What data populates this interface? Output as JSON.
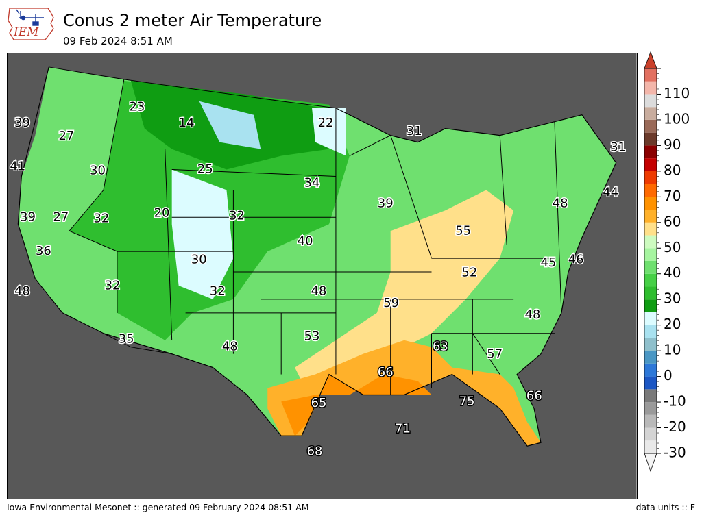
{
  "header": {
    "title": "Conus 2 meter Air Temperature",
    "subtitle": "09 Feb 2024 8:51 AM",
    "logo_text": "IEM"
  },
  "footer": {
    "left": "Iowa Environmental Mesonet :: generated 09 February 2024 08:51 AM",
    "right": "data units :: F"
  },
  "colorbar": {
    "min": -30,
    "max": 120,
    "tick_labels": [
      "110",
      "100",
      "90",
      "80",
      "70",
      "60",
      "50",
      "40",
      "30",
      "20",
      "10",
      "0",
      "-10",
      "-20",
      "-30"
    ],
    "tick_values": [
      110,
      100,
      90,
      80,
      70,
      60,
      50,
      40,
      30,
      20,
      10,
      0,
      -10,
      -20,
      -30
    ],
    "bands": [
      {
        "from": -30,
        "to": -25,
        "color": "#e9e9e9"
      },
      {
        "from": -25,
        "to": -20,
        "color": "#d4d4d4"
      },
      {
        "from": -20,
        "to": -15,
        "color": "#b9b9b9"
      },
      {
        "from": -15,
        "to": -10,
        "color": "#9a9a9a"
      },
      {
        "from": -10,
        "to": -5,
        "color": "#7a7a7a"
      },
      {
        "from": -5,
        "to": 0,
        "color": "#1c57c4"
      },
      {
        "from": 0,
        "to": 5,
        "color": "#2d78d8"
      },
      {
        "from": 5,
        "to": 10,
        "color": "#4a97c4"
      },
      {
        "from": 10,
        "to": 15,
        "color": "#8fc0cc"
      },
      {
        "from": 15,
        "to": 20,
        "color": "#a9e2f0"
      },
      {
        "from": 20,
        "to": 25,
        "color": "#dcfcff"
      },
      {
        "from": 25,
        "to": 30,
        "color": "#0f9d12"
      },
      {
        "from": 30,
        "to": 35,
        "color": "#2fbe2f"
      },
      {
        "from": 35,
        "to": 40,
        "color": "#46d046"
      },
      {
        "from": 40,
        "to": 45,
        "color": "#6fe06f"
      },
      {
        "from": 45,
        "to": 50,
        "color": "#a6f5a0"
      },
      {
        "from": 50,
        "to": 55,
        "color": "#cdfbc0"
      },
      {
        "from": 55,
        "to": 60,
        "color": "#ffe08a"
      },
      {
        "from": 60,
        "to": 65,
        "color": "#ffb12a"
      },
      {
        "from": 65,
        "to": 70,
        "color": "#ff9200"
      },
      {
        "from": 70,
        "to": 75,
        "color": "#ff6a00"
      },
      {
        "from": 75,
        "to": 80,
        "color": "#ee3a00"
      },
      {
        "from": 80,
        "to": 85,
        "color": "#c40000"
      },
      {
        "from": 85,
        "to": 90,
        "color": "#8b0000"
      },
      {
        "from": 90,
        "to": 95,
        "color": "#6b3a2a"
      },
      {
        "from": 95,
        "to": 100,
        "color": "#9a6a58"
      },
      {
        "from": 100,
        "to": 105,
        "color": "#c9ad9e"
      },
      {
        "from": 105,
        "to": 110,
        "color": "#dcdcdc"
      },
      {
        "from": 110,
        "to": 115,
        "color": "#f3b6aa"
      },
      {
        "from": 115,
        "to": 120,
        "color": "#e27060"
      }
    ],
    "over_color": "#c9402a",
    "under_color": "#f5f5f5"
  },
  "station_labels": [
    {
      "text": "39",
      "temp": 39,
      "lon": -123.8,
      "lat": 47.0
    },
    {
      "text": "27",
      "temp": 27,
      "lon": -119.0,
      "lat": 46.2
    },
    {
      "text": "23",
      "temp": 23,
      "lon": -111.5,
      "lat": 48.0
    },
    {
      "text": "14",
      "temp": 14,
      "lon": -107.5,
      "lat": 47.0
    },
    {
      "text": "22",
      "temp": 22,
      "lon": -97.0,
      "lat": 47.0
    },
    {
      "text": "31",
      "temp": 31,
      "lon": -89.5,
      "lat": 46.5
    },
    {
      "text": "31",
      "temp": 31,
      "lon": -69.0,
      "lat": 45.5
    },
    {
      "text": "41",
      "temp": 41,
      "lon": -124.3,
      "lat": 44.2
    },
    {
      "text": "30",
      "temp": 30,
      "lon": -115.6,
      "lat": 43.9
    },
    {
      "text": "25",
      "temp": 25,
      "lon": -106.0,
      "lat": 44.0
    },
    {
      "text": "34",
      "temp": 34,
      "lon": -98.0,
      "lat": 43.0
    },
    {
      "text": "44",
      "temp": 44,
      "lon": -70.0,
      "lat": 42.3
    },
    {
      "text": "39",
      "temp": 39,
      "lon": -123.2,
      "lat": 40.5
    },
    {
      "text": "27",
      "temp": 27,
      "lon": -119.6,
      "lat": 40.5
    },
    {
      "text": "32",
      "temp": 32,
      "lon": -115.2,
      "lat": 40.4
    },
    {
      "text": "20",
      "temp": 20,
      "lon": -109.5,
      "lat": 40.8
    },
    {
      "text": "32",
      "temp": 32,
      "lon": -103.5,
      "lat": 40.6
    },
    {
      "text": "39",
      "temp": 39,
      "lon": -92.0,
      "lat": 41.5
    },
    {
      "text": "48",
      "temp": 48,
      "lon": -76.5,
      "lat": 41.5
    },
    {
      "text": "36",
      "temp": 36,
      "lon": -121.5,
      "lat": 38.1
    },
    {
      "text": "30",
      "temp": 30,
      "lon": -106.5,
      "lat": 37.5
    },
    {
      "text": "40",
      "temp": 40,
      "lon": -98.5,
      "lat": 38.8
    },
    {
      "text": "55",
      "temp": 55,
      "lon": -85.5,
      "lat": 39.5
    },
    {
      "text": "48",
      "temp": 48,
      "lon": -123.8,
      "lat": 35.3
    },
    {
      "text": "32",
      "temp": 32,
      "lon": -114.0,
      "lat": 35.7
    },
    {
      "text": "32",
      "temp": 32,
      "lon": -105.0,
      "lat": 35.3
    },
    {
      "text": "48",
      "temp": 48,
      "lon": -97.5,
      "lat": 35.3
    },
    {
      "text": "52",
      "temp": 52,
      "lon": -85.0,
      "lat": 36.6
    },
    {
      "text": "45",
      "temp": 45,
      "lon": -78.0,
      "lat": 37.3
    },
    {
      "text": "46",
      "temp": 46,
      "lon": -74.5,
      "lat": 37.5
    },
    {
      "text": "59",
      "temp": 59,
      "lon": -91.5,
      "lat": 34.4
    },
    {
      "text": "48",
      "temp": 48,
      "lon": -80.0,
      "lat": 33.5
    },
    {
      "text": "35",
      "temp": 35,
      "lon": -112.5,
      "lat": 31.6
    },
    {
      "text": "48",
      "temp": 48,
      "lon": -104.0,
      "lat": 31.0
    },
    {
      "text": "53",
      "temp": 53,
      "lon": -98.0,
      "lat": 31.8
    },
    {
      "text": "63",
      "temp": 63,
      "lon": -87.3,
      "lat": 31.0
    },
    {
      "text": "57",
      "temp": 57,
      "lon": -83.0,
      "lat": 30.6
    },
    {
      "text": "66",
      "temp": 66,
      "lon": -92.0,
      "lat": 29.6
    },
    {
      "text": "66",
      "temp": 66,
      "lon": -79.8,
      "lat": 28.3
    },
    {
      "text": "65",
      "temp": 65,
      "lon": -97.5,
      "lat": 27.9
    },
    {
      "text": "75",
      "temp": 75,
      "lon": -85.2,
      "lat": 28.0
    },
    {
      "text": "71",
      "temp": 71,
      "lon": -90.5,
      "lat": 26.4
    },
    {
      "text": "68",
      "temp": 68,
      "lon": -97.8,
      "lat": 25.1
    }
  ]
}
